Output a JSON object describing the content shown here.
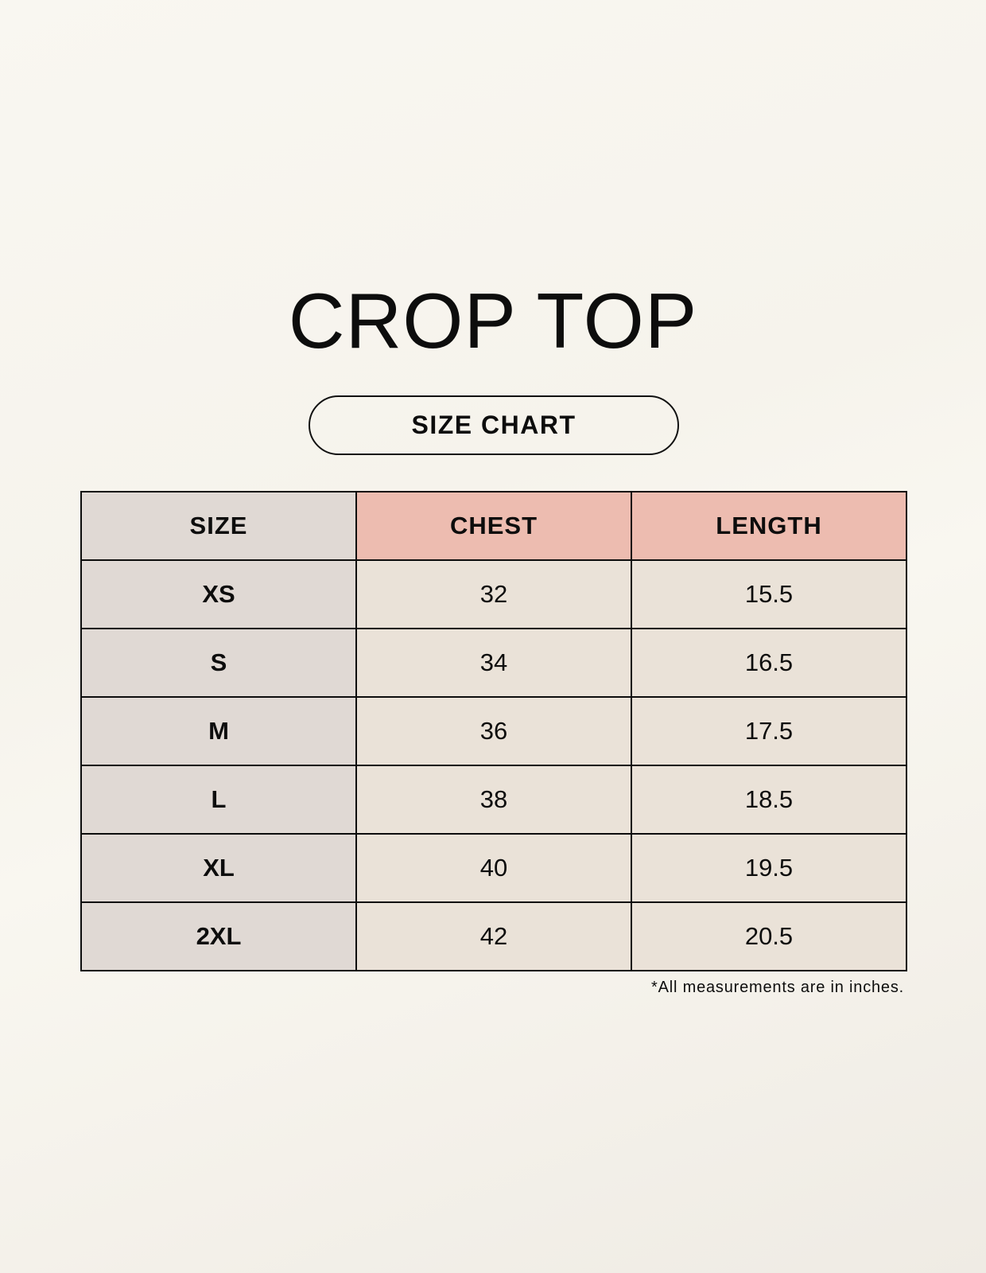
{
  "title": "CROP TOP",
  "subtitle": "SIZE CHART",
  "table": {
    "headers": [
      "SIZE",
      "CHEST",
      "LENGTH"
    ],
    "rows": [
      [
        "XS",
        "32",
        "15.5"
      ],
      [
        "S",
        "34",
        "16.5"
      ],
      [
        "M",
        "36",
        "17.5"
      ],
      [
        "L",
        "38",
        "18.5"
      ],
      [
        "XL",
        "40",
        "19.5"
      ],
      [
        "2XL",
        "42",
        "20.5"
      ]
    ]
  },
  "note": "*All measurements are in inches.",
  "colors": {
    "header_accent": "#edbcb0",
    "size_column": "#e0d9d4",
    "cell": "#eae2d8",
    "background": "#f8f6f0"
  }
}
